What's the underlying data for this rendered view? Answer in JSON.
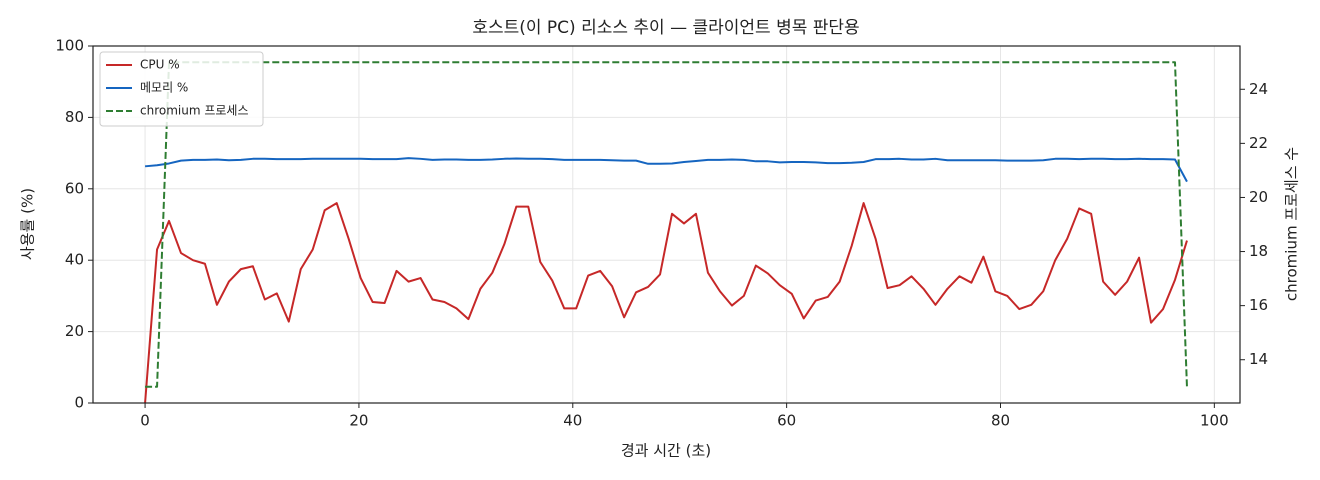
{
  "chart_data": {
    "type": "line",
    "title": "호스트(이 PC) 리소스 추이 — 클라이언트 병목 판단용",
    "xlabel": "경과 시간 (초)",
    "ylabel": "사용률 (%)",
    "y2label": "chromium 프로세스 수",
    "x": [
      0,
      1.12,
      2.24,
      3.36,
      4.48,
      5.6,
      6.72,
      7.84,
      8.96,
      10.08,
      11.2,
      12.32,
      13.44,
      14.56,
      15.68,
      16.8,
      17.92,
      19.04,
      20.16,
      21.28,
      22.4,
      23.52,
      24.64,
      25.76,
      26.88,
      28,
      29.12,
      30.24,
      31.36,
      32.48,
      33.6,
      34.72,
      35.84,
      36.96,
      38.08,
      39.2,
      40.32,
      41.44,
      42.56,
      43.68,
      44.8,
      45.92,
      47.04,
      48.16,
      49.28,
      50.4,
      51.52,
      52.64,
      53.76,
      54.88,
      56,
      57.12,
      58.24,
      59.36,
      60.48,
      61.6,
      62.72,
      63.84,
      64.96,
      66.08,
      67.2,
      68.32,
      69.44,
      70.56,
      71.68,
      72.8,
      73.92,
      75.04,
      76.16,
      77.28,
      78.4,
      79.52,
      80.64,
      81.76,
      82.88,
      84,
      85.12,
      86.24,
      87.36,
      88.48,
      89.6,
      90.72,
      91.84,
      92.96,
      94.08,
      95.2,
      96.32,
      97.44
    ],
    "series": [
      {
        "name": "CPU %",
        "color": "#c62828",
        "dash": false,
        "values": [
          0,
          43,
          51,
          42,
          40,
          39,
          27.5,
          34,
          37.5,
          38.3,
          29,
          30.7,
          22.8,
          37.5,
          43,
          54,
          56,
          46,
          35,
          28.3,
          28,
          37,
          34,
          35,
          29,
          28.3,
          26.5,
          23.5,
          32,
          36.5,
          44.5,
          55,
          55,
          39.5,
          34.3,
          26.5,
          26.5,
          35.7,
          37,
          32.7,
          24,
          31,
          32.5,
          36,
          53,
          50.3,
          53,
          36.5,
          31.3,
          27.3,
          30,
          38.5,
          36.3,
          33,
          30.6,
          23.7,
          28.7,
          29.7,
          34,
          44,
          56,
          46,
          32.2,
          33,
          35.5,
          32,
          27.5,
          32,
          35.5,
          33.7,
          41,
          31.3,
          30,
          26.3,
          27.5,
          31.3,
          40,
          46,
          54.5,
          53,
          34,
          30.3,
          34,
          40.7,
          22.5,
          26.3,
          34.5,
          45.5
        ]
      },
      {
        "name": "메모리 %",
        "color": "#1565c0",
        "dash": false,
        "values": [
          66.3,
          66.6,
          67.1,
          67.9,
          68.1,
          68.1,
          68.2,
          68.0,
          68.1,
          68.4,
          68.4,
          68.3,
          68.3,
          68.3,
          68.4,
          68.4,
          68.4,
          68.4,
          68.4,
          68.3,
          68.3,
          68.3,
          68.6,
          68.4,
          68.1,
          68.2,
          68.2,
          68.1,
          68.1,
          68.2,
          68.4,
          68.5,
          68.4,
          68.4,
          68.3,
          68.1,
          68.1,
          68.1,
          68.1,
          68.0,
          67.9,
          67.9,
          67.0,
          67.0,
          67.1,
          67.5,
          67.8,
          68.1,
          68.1,
          68.2,
          68.1,
          67.7,
          67.7,
          67.4,
          67.5,
          67.5,
          67.4,
          67.2,
          67.2,
          67.3,
          67.5,
          68.3,
          68.3,
          68.4,
          68.2,
          68.2,
          68.4,
          68.0,
          68.0,
          68.0,
          68.0,
          68.0,
          67.9,
          67.9,
          67.9,
          68.0,
          68.4,
          68.4,
          68.3,
          68.4,
          68.4,
          68.3,
          68.3,
          68.4,
          68.3,
          68.3,
          68.2,
          62.0
        ]
      },
      {
        "name": "chromium 프로세스",
        "color": "#2e7d32",
        "dash": true,
        "axis": "y2",
        "values": [
          13,
          13,
          25,
          25,
          25,
          25,
          25,
          25,
          25,
          25,
          25,
          25,
          25,
          25,
          25,
          25,
          25,
          25,
          25,
          25,
          25,
          25,
          25,
          25,
          25,
          25,
          25,
          25,
          25,
          25,
          25,
          25,
          25,
          25,
          25,
          25,
          25,
          25,
          25,
          25,
          25,
          25,
          25,
          25,
          25,
          25,
          25,
          25,
          25,
          25,
          25,
          25,
          25,
          25,
          25,
          25,
          25,
          25,
          25,
          25,
          25,
          25,
          25,
          25,
          25,
          25,
          25,
          25,
          25,
          25,
          25,
          25,
          25,
          25,
          25,
          25,
          25,
          25,
          25,
          25,
          25,
          25,
          25,
          25,
          25,
          25,
          25,
          13
        ]
      }
    ],
    "xlim": [
      -4.87,
      102.4
    ],
    "xticks": [
      0,
      20,
      40,
      60,
      80,
      100
    ],
    "ylim": [
      0,
      100
    ],
    "yticks": [
      0,
      20,
      40,
      60,
      80,
      100
    ],
    "y2lim": [
      12.4,
      25.6
    ],
    "y2ticks": [
      14,
      16,
      18,
      20,
      22,
      24
    ],
    "grid": true,
    "legend": "upper-left"
  }
}
